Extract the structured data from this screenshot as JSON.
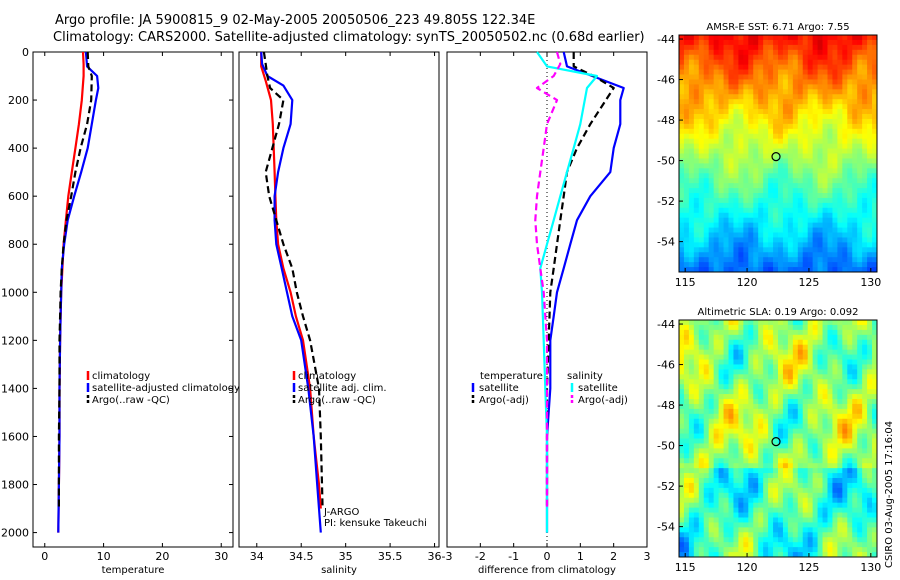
{
  "header": {
    "line1": "Argo profile: JA 5900815_9 02-May-2005 20050506_223 49.805S 122.34E",
    "line2": "Climatology: CARS2000. Satellite-adjusted climatology: synTS_20050502.nc (0.68d earlier)"
  },
  "credit": "CSIRO 03-Aug-2005 17:16:04",
  "colors": {
    "red": "#ff0000",
    "blue": "#0000ff",
    "black": "#000000",
    "cyan": "#00ffff",
    "magenta": "#ff00ff"
  },
  "chart_data": [
    {
      "type": "line",
      "id": "temperature",
      "xlabel": "temperature",
      "xlim": [
        -2,
        32
      ],
      "ylim": [
        0,
        2060
      ],
      "y_reversed": true,
      "xticks": [
        0,
        10,
        20,
        30
      ],
      "yticks": [
        0,
        200,
        400,
        600,
        800,
        1000,
        1200,
        1400,
        1600,
        1800,
        2000
      ],
      "legend": {
        "position": "lower-right",
        "entries": [
          "climatology",
          "satellite-adjusted climatology",
          "Argo(..raw -QC)"
        ]
      },
      "series": [
        {
          "name": "climatology",
          "color": "#ff0000",
          "style": "solid",
          "x": [
            6.5,
            6.6,
            6.6,
            6.3,
            5.8,
            5.2,
            4.6,
            4.0,
            3.6,
            3.2,
            3.0,
            2.8,
            2.7,
            2.6,
            2.5,
            2.5,
            2.4,
            2.3
          ],
          "y": [
            0,
            50,
            100,
            200,
            300,
            400,
            500,
            600,
            700,
            800,
            900,
            1000,
            1100,
            1200,
            1400,
            1600,
            1800,
            2000
          ]
        },
        {
          "name": "satellite-adjusted climatology",
          "color": "#0000ff",
          "style": "solid",
          "x": [
            7.0,
            7.2,
            8.9,
            9.1,
            8.7,
            8.0,
            7.3,
            6.2,
            5.0,
            3.9,
            3.3,
            2.9,
            2.8,
            2.7,
            2.6,
            2.5,
            2.5,
            2.4,
            2.3
          ],
          "y": [
            0,
            60,
            100,
            150,
            200,
            300,
            400,
            500,
            600,
            700,
            800,
            900,
            1000,
            1100,
            1200,
            1400,
            1600,
            1800,
            2000
          ]
        },
        {
          "name": "Argo(..raw -QC)",
          "color": "#000000",
          "style": "dashed",
          "x": [
            7.3,
            7.4,
            8.0,
            7.9,
            7.2,
            6.1,
            5.2,
            4.5,
            3.7,
            3.2,
            2.9,
            2.7,
            2.6,
            2.5,
            2.5,
            2.4,
            2.4
          ],
          "y": [
            0,
            60,
            100,
            200,
            300,
            400,
            500,
            600,
            700,
            800,
            900,
            1000,
            1100,
            1200,
            1400,
            1600,
            1900
          ]
        }
      ]
    },
    {
      "type": "line",
      "id": "salinity",
      "xlabel": "salinity",
      "xlim": [
        33.8,
        36.05
      ],
      "ylim": [
        0,
        2060
      ],
      "y_reversed": true,
      "xticks": [
        34,
        34.5,
        35,
        35.5,
        36
      ],
      "yticks": [],
      "legend": {
        "position": "lower-right",
        "entries": [
          "climatology",
          "satellite adj. clim.",
          "Argo(..raw -QC)"
        ]
      },
      "annotations": [
        "J-ARGO",
        "PI: kensuke Takeuchi"
      ],
      "series": [
        {
          "name": "climatology",
          "color": "#ff0000",
          "style": "solid",
          "x": [
            34.05,
            34.05,
            34.1,
            34.16,
            34.18,
            34.19,
            34.2,
            34.21,
            34.22,
            34.24,
            34.3,
            34.38,
            34.44,
            34.52,
            34.6,
            34.64,
            34.67,
            34.7,
            34.72
          ],
          "y": [
            0,
            60,
            120,
            200,
            300,
            400,
            500,
            600,
            700,
            800,
            900,
            1000,
            1100,
            1200,
            1400,
            1600,
            1700,
            1800,
            1900
          ]
        },
        {
          "name": "satellite adj. clim.",
          "color": "#0000ff",
          "style": "solid",
          "x": [
            34.05,
            34.06,
            34.12,
            34.3,
            34.4,
            34.38,
            34.3,
            34.24,
            34.2,
            34.2,
            34.22,
            34.28,
            34.34,
            34.4,
            34.5,
            34.58,
            34.64,
            34.68,
            34.7,
            34.72
          ],
          "y": [
            0,
            50,
            100,
            140,
            200,
            300,
            400,
            500,
            600,
            700,
            800,
            900,
            1000,
            1100,
            1200,
            1400,
            1600,
            1800,
            1900,
            2000
          ]
        },
        {
          "name": "Argo(..raw -QC)",
          "color": "#000000",
          "style": "dashed",
          "x": [
            34.08,
            34.1,
            34.12,
            34.15,
            34.3,
            34.25,
            34.1,
            34.14,
            34.22,
            34.3,
            34.4,
            34.45,
            34.52,
            34.6,
            34.7,
            34.72,
            34.74
          ],
          "y": [
            0,
            50,
            100,
            150,
            200,
            300,
            500,
            600,
            700,
            800,
            900,
            1000,
            1100,
            1200,
            1400,
            1600,
            1900
          ]
        }
      ]
    },
    {
      "type": "line",
      "id": "difference",
      "xlabel": "difference from climatology",
      "xlim": [
        -3,
        3
      ],
      "ylim": [
        0,
        2060
      ],
      "y_reversed": true,
      "xticks": [
        -3,
        -2,
        -1,
        0,
        1,
        2,
        3
      ],
      "yticks": [],
      "legend": {
        "position": "lower-right",
        "headings": [
          "temperature",
          "salinity"
        ],
        "entries": [
          "satellite",
          "Argo(-adj)",
          "satellite",
          "Argo(-adj)"
        ]
      },
      "series": [
        {
          "name": "temperature satellite",
          "color": "#0000ff",
          "style": "solid",
          "x": [
            0.5,
            0.6,
            2.3,
            2.2,
            2.2,
            2.0,
            1.9,
            1.3,
            0.9,
            0.7,
            0.5,
            0.3,
            0.2,
            0.1,
            0.1,
            0.0,
            0.0,
            0.0
          ],
          "y": [
            0,
            60,
            150,
            200,
            300,
            400,
            500,
            600,
            700,
            800,
            900,
            1000,
            1100,
            1200,
            1400,
            1600,
            1800,
            2000
          ]
        },
        {
          "name": "temperature Argo(-adj)",
          "color": "#000000",
          "style": "dashed",
          "x": [
            0.8,
            0.8,
            1.4,
            2.0,
            1.3,
            0.9,
            0.6,
            0.5,
            0.4,
            0.3,
            0.2,
            0.1,
            0.05,
            0.0,
            0.0,
            0.0
          ],
          "y": [
            0,
            60,
            100,
            150,
            300,
            400,
            500,
            600,
            700,
            800,
            900,
            1000,
            1200,
            1400,
            1600,
            1900
          ]
        },
        {
          "name": "salinity satellite",
          "color": "#00ffff",
          "style": "solid",
          "x": [
            -0.3,
            0.0,
            1.5,
            1.2,
            1.0,
            0.8,
            0.6,
            0.4,
            0.2,
            0.0,
            -0.2,
            -0.15,
            -0.1,
            -0.05,
            0.0,
            0.0,
            0.0
          ],
          "y": [
            0,
            60,
            100,
            150,
            300,
            400,
            500,
            600,
            700,
            800,
            900,
            1000,
            1200,
            1400,
            1600,
            1800,
            2000
          ]
        },
        {
          "name": "salinity Argo(-adj)",
          "color": "#ff00ff",
          "style": "dashed",
          "x": [
            0.3,
            0.4,
            0.2,
            -0.3,
            0.3,
            0.0,
            -0.1,
            -0.2,
            -0.3,
            -0.35,
            -0.3,
            -0.2,
            -0.1,
            0.0,
            0.0,
            0.0
          ],
          "y": [
            0,
            50,
            100,
            150,
            200,
            300,
            400,
            500,
            600,
            700,
            800,
            900,
            1000,
            1200,
            1400,
            1900
          ]
        }
      ]
    },
    {
      "type": "heatmap",
      "id": "sst-map",
      "title": "AMSR-E SST: 6.71 Argo: 7.55",
      "xlim": [
        114.5,
        130.5
      ],
      "ylim": [
        -55.5,
        -43.8
      ],
      "xticks": [
        115,
        120,
        125,
        130
      ],
      "yticks": [
        -44,
        -46,
        -48,
        -50,
        -52,
        -54
      ],
      "marker": {
        "lon": 122.34,
        "lat": -49.805
      }
    },
    {
      "type": "heatmap",
      "id": "sla-map",
      "title": "Altimetric SLA: 0.19 Argo: 0.092",
      "xlim": [
        114.5,
        130.5
      ],
      "ylim": [
        -55.5,
        -43.8
      ],
      "xticks": [
        115,
        120,
        125,
        130
      ],
      "yticks": [
        -44,
        -46,
        -48,
        -50,
        -52,
        -54
      ],
      "marker": {
        "lon": 122.34,
        "lat": -49.805
      }
    }
  ]
}
